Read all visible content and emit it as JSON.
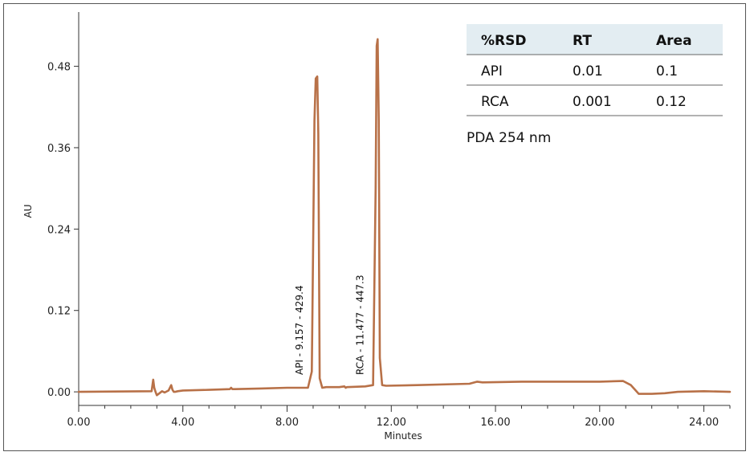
{
  "chart_data": {
    "type": "line",
    "title": "",
    "xlabel": "Minutes",
    "ylabel": "AU",
    "xlim": [
      0,
      25
    ],
    "ylim": [
      -0.02,
      0.56
    ],
    "x_ticks": [
      0,
      4,
      8,
      12,
      16,
      20,
      24
    ],
    "x_tick_labels": [
      "0.00",
      "4.00",
      "8.00",
      "12.00",
      "16.00",
      "20.00",
      "24.00"
    ],
    "y_ticks": [
      0,
      0.12,
      0.24,
      0.36,
      0.48
    ],
    "y_tick_labels": [
      "0.00",
      "0.12",
      "0.24",
      "0.36",
      "0.48"
    ],
    "grid": false,
    "line_color": "#b87148",
    "series": [
      {
        "x": [
          0,
          2.8,
          2.86,
          2.9,
          2.95,
          3.0,
          3.1,
          3.2,
          3.3,
          3.45,
          3.55,
          3.6,
          3.65,
          3.7,
          3.8,
          4.0,
          5.0,
          5.8,
          5.85,
          5.9,
          6.0,
          7.0,
          8.0,
          8.8,
          8.95,
          9.05,
          9.1,
          9.157,
          9.2,
          9.25,
          9.35,
          9.5,
          10.0,
          10.2,
          10.25,
          10.3,
          11.0,
          11.3,
          11.4,
          11.44,
          11.477,
          11.52,
          11.56,
          11.65,
          11.8,
          13.0,
          15.0,
          15.3,
          15.5,
          17.0,
          20.0,
          20.9,
          21.2,
          21.5,
          22.0,
          22.5,
          23.0,
          24.0,
          25.0
        ],
        "y": [
          0,
          0.001,
          0.018,
          0.006,
          0.0,
          -0.005,
          -0.002,
          0.001,
          -0.001,
          0.002,
          0.01,
          0.003,
          0.0,
          0.0,
          0.001,
          0.002,
          0.003,
          0.004,
          0.006,
          0.004,
          0.004,
          0.005,
          0.006,
          0.006,
          0.03,
          0.4,
          0.462,
          0.465,
          0.38,
          0.02,
          0.006,
          0.007,
          0.007,
          0.008,
          0.006,
          0.007,
          0.008,
          0.01,
          0.3,
          0.51,
          0.52,
          0.4,
          0.05,
          0.01,
          0.009,
          0.01,
          0.012,
          0.015,
          0.014,
          0.015,
          0.015,
          0.016,
          0.01,
          -0.003,
          -0.003,
          -0.002,
          0.0,
          0.001,
          0.0
        ]
      }
    ],
    "peak_labels": [
      {
        "text": "API - 9.157 - 429.4",
        "x": 9.157,
        "y": 0.025
      },
      {
        "text": "RCA - 11.477 - 447.3",
        "x": 11.477,
        "y": 0.025
      }
    ],
    "annotation": "PDA 254 nm",
    "rsd_table": {
      "headers": [
        "%RSD",
        "RT",
        "Area"
      ],
      "rows": [
        [
          "API",
          "0.01",
          "0.1"
        ],
        [
          "RCA",
          "0.001",
          "0.12"
        ]
      ],
      "header_bg": "#e3edf2"
    }
  }
}
